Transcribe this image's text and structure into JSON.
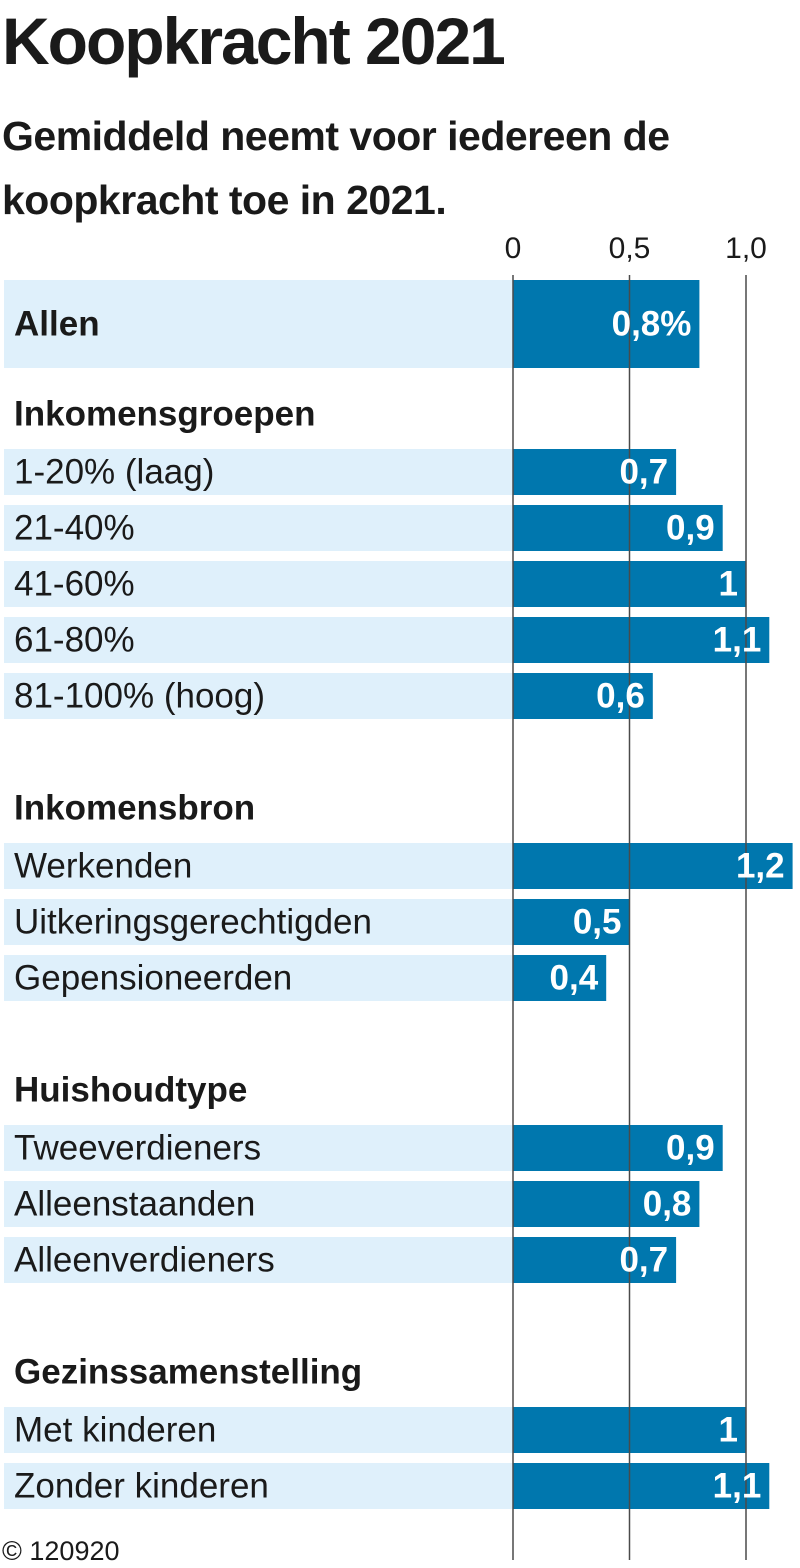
{
  "chart_data": {
    "type": "bar",
    "orientation": "horizontal",
    "title": "Koopkracht 2021",
    "subtitle": "Gemiddeld neemt voor iedereen de koopkracht toe in 2021.",
    "xticks": [
      "0",
      "0,5",
      "1,0"
    ],
    "xtick_values": [
      0,
      0.5,
      1.0
    ],
    "xlim": [
      0,
      1.2
    ],
    "grid": true,
    "rows": [
      {
        "kind": "bar",
        "label": "Allen",
        "value": 0.8,
        "value_label": "0,8%",
        "emphasis": true
      },
      {
        "kind": "group",
        "label": "Inkomensgroepen"
      },
      {
        "kind": "bar",
        "label": "1-20% (laag)",
        "value": 0.7,
        "value_label": "0,7"
      },
      {
        "kind": "bar",
        "label": "21-40%",
        "value": 0.9,
        "value_label": "0,9"
      },
      {
        "kind": "bar",
        "label": "41-60%",
        "value": 1.0,
        "value_label": "1"
      },
      {
        "kind": "bar",
        "label": "61-80%",
        "value": 1.1,
        "value_label": "1,1"
      },
      {
        "kind": "bar",
        "label": "81-100% (hoog)",
        "value": 0.6,
        "value_label": "0,6"
      },
      {
        "kind": "group",
        "label": "Inkomensbron"
      },
      {
        "kind": "bar",
        "label": "Werkenden",
        "value": 1.2,
        "value_label": "1,2"
      },
      {
        "kind": "bar",
        "label": "Uitkeringsgerechtigden",
        "value": 0.5,
        "value_label": "0,5"
      },
      {
        "kind": "bar",
        "label": "Gepensioneerden",
        "value": 0.4,
        "value_label": "0,4"
      },
      {
        "kind": "group",
        "label": "Huishoudtype"
      },
      {
        "kind": "bar",
        "label": "Tweeverdieners",
        "value": 0.9,
        "value_label": "0,9"
      },
      {
        "kind": "bar",
        "label": "Alleenstaanden",
        "value": 0.8,
        "value_label": "0,8"
      },
      {
        "kind": "bar",
        "label": "Alleenverdieners",
        "value": 0.7,
        "value_label": "0,7"
      },
      {
        "kind": "group",
        "label": "Gezinssamenstelling"
      },
      {
        "kind": "bar",
        "label": "Met kinderen",
        "value": 1.0,
        "value_label": "1"
      },
      {
        "kind": "bar",
        "label": "Zonder kinderen",
        "value": 1.1,
        "value_label": "1,1"
      }
    ]
  },
  "colors": {
    "bar": "#0077ae",
    "row_background": "#dff0fb",
    "gridline": "#4a4a4a",
    "text": "#1a1a1a"
  },
  "credit": "© 120920"
}
